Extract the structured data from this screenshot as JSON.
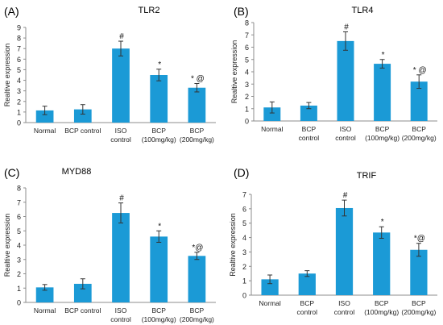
{
  "chart_data": [
    {
      "type": "bar",
      "panel": "(A)",
      "title": "TLR2",
      "ylabel": "Realtive expression",
      "ylim": [
        0,
        9
      ],
      "yticks": [
        0,
        1,
        2,
        3,
        4,
        5,
        6,
        7,
        8,
        9
      ],
      "color": "#1b9ad6",
      "categories": [
        [
          "Normal"
        ],
        [
          "BCP control"
        ],
        [
          "ISO",
          "control"
        ],
        [
          "BCP",
          "(100mg/kg)"
        ],
        [
          "BCP",
          "(200mg/kg)"
        ]
      ],
      "values": [
        1.15,
        1.25,
        7.0,
        4.5,
        3.3
      ],
      "errors": [
        0.4,
        0.45,
        0.7,
        0.55,
        0.4
      ],
      "annotations": [
        "",
        "",
        "#",
        "*",
        "* @"
      ]
    },
    {
      "type": "bar",
      "panel": "(B)",
      "title": "TLR4",
      "ylabel": "Realtive expression",
      "ylim": [
        0,
        8
      ],
      "yticks": [
        0,
        1,
        2,
        3,
        4,
        5,
        6,
        7,
        8
      ],
      "color": "#1b9ad6",
      "categories": [
        [
          "Normal"
        ],
        [
          "BCP",
          "control"
        ],
        [
          "ISO",
          "control"
        ],
        [
          "BCP",
          "(100mg/kg)"
        ],
        [
          "BCP",
          "(200mg/kg)"
        ]
      ],
      "values": [
        1.1,
        1.25,
        6.5,
        4.65,
        3.2
      ],
      "errors": [
        0.45,
        0.25,
        0.75,
        0.35,
        0.55
      ],
      "annotations": [
        "",
        "",
        "#",
        "*",
        "* @"
      ]
    },
    {
      "type": "bar",
      "panel": "(C)",
      "title": "MYD88",
      "ylabel": "Realtive expression",
      "ylim": [
        0,
        8
      ],
      "yticks": [
        0,
        1,
        2,
        3,
        4,
        5,
        6,
        7,
        8
      ],
      "color": "#1b9ad6",
      "categories": [
        [
          "Normal"
        ],
        [
          "BCP control"
        ],
        [
          "ISO",
          "control"
        ],
        [
          "BCP",
          "(100mg/kg)"
        ],
        [
          "BCP",
          "(200mg/kg)"
        ]
      ],
      "values": [
        1.05,
        1.3,
        6.25,
        4.6,
        3.25
      ],
      "errors": [
        0.2,
        0.35,
        0.7,
        0.4,
        0.25
      ],
      "annotations": [
        "",
        "",
        "#",
        "*",
        "*@"
      ]
    },
    {
      "type": "bar",
      "panel": "(D)",
      "title": "TRIF",
      "ylabel": "Realtive expression",
      "ylim": [
        0,
        7
      ],
      "yticks": [
        0,
        1,
        2,
        3,
        4,
        5,
        6,
        7
      ],
      "color": "#1b9ad6",
      "categories": [
        [
          "Normal"
        ],
        [
          "BCP",
          "control"
        ],
        [
          "ISO",
          "control"
        ],
        [
          "BCP",
          "(100mg/kg)"
        ],
        [
          "BCP",
          "(200mg/kg)"
        ]
      ],
      "values": [
        1.1,
        1.5,
        6.05,
        4.35,
        3.15
      ],
      "errors": [
        0.3,
        0.2,
        0.55,
        0.4,
        0.45
      ],
      "annotations": [
        "",
        "",
        "#",
        "*",
        "*@"
      ]
    }
  ]
}
